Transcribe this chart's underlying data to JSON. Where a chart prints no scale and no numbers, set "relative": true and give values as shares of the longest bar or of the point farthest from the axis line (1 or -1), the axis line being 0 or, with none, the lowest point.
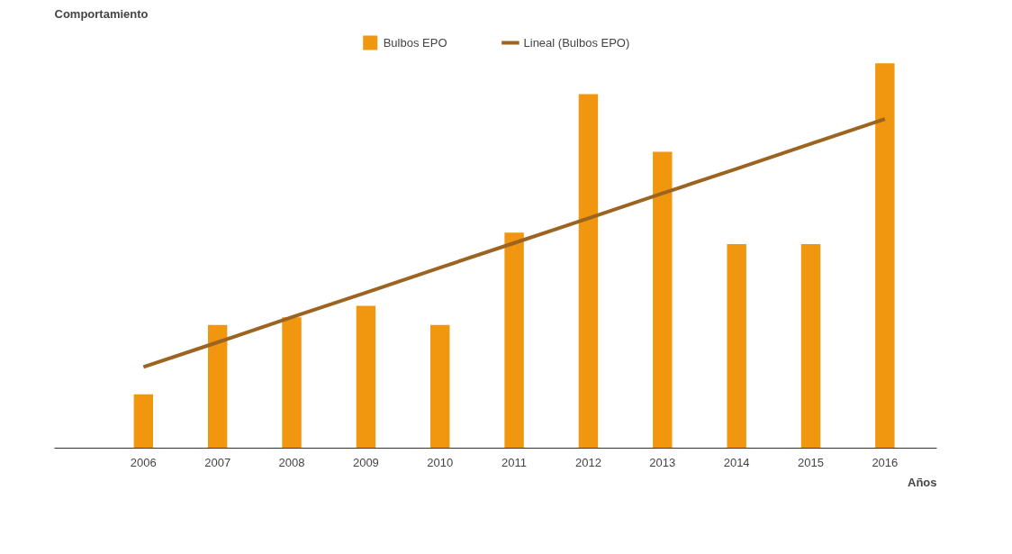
{
  "chart_data": {
    "type": "bar",
    "relative": true,
    "xlabel": "Años",
    "ylabel": "Comportamiento",
    "legend": "top",
    "grid": false,
    "categories": [
      "2006",
      "2007",
      "2008",
      "2009",
      "2010",
      "2011",
      "2012",
      "2013",
      "2014",
      "2015",
      "2016"
    ],
    "series": [
      {
        "name": "Bulbos EPO",
        "color": "#f0960f",
        "values": [
          0.14,
          0.32,
          0.34,
          0.37,
          0.32,
          0.56,
          0.92,
          0.77,
          0.53,
          0.53,
          1
        ]
      },
      {
        "name": "Lineal (Bulbos EPO)",
        "type": "line",
        "color": "#9c6420",
        "values": [
          0.211,
          0.275,
          0.34,
          0.404,
          0.469,
          0.533,
          0.597,
          0.662,
          0.726,
          0.791,
          0.855
        ]
      }
    ]
  }
}
